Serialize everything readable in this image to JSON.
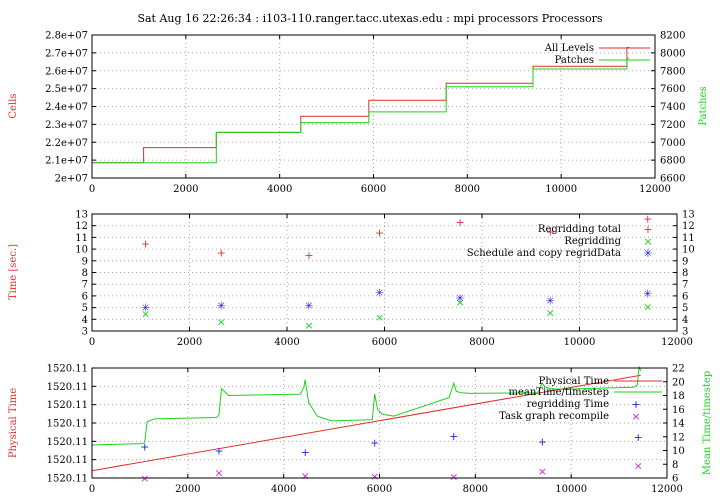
{
  "title": "Sat Aug 16 22:26:34 : i103-110.ranger.tacc.utexas.edu : mpi processors Processors",
  "colors": {
    "red": "#e0302c",
    "green": "#1ed21e",
    "blue": "#2020e0",
    "magenta": "#e020e0",
    "grid": "#aaaaaa"
  },
  "chart_data": [
    {
      "type": "line",
      "ylabel": "Cells",
      "y2label": "Patches",
      "xlim": [
        0,
        12000
      ],
      "ylim": [
        20000000,
        28000000
      ],
      "y2lim": [
        6600,
        8200
      ],
      "xticks": [
        "0",
        "2000",
        "4000",
        "6000",
        "8000",
        "10000",
        "12000"
      ],
      "yticks": [
        "2e+07",
        "2.1e+07",
        "2.2e+07",
        "2.3e+07",
        "2.4e+07",
        "2.5e+07",
        "2.6e+07",
        "2.7e+07",
        "2.8e+07"
      ],
      "y2ticks": [
        "6600",
        "6800",
        "7000",
        "7200",
        "7400",
        "7600",
        "7800",
        "8000",
        "8200"
      ],
      "legend_position": "top-right",
      "series": [
        {
          "name": "All Levels",
          "axis": "left",
          "color": "#e0302c",
          "kind": "step",
          "x": [
            0,
            1100,
            1100,
            2650,
            2650,
            4450,
            4450,
            5900,
            5900,
            7550,
            7550,
            9400,
            9400,
            11400,
            11400,
            11450
          ],
          "y": [
            20850000,
            20850000,
            21700000,
            21700000,
            22550000,
            22550000,
            23450000,
            23450000,
            24350000,
            24350000,
            25300000,
            25300000,
            26250000,
            26250000,
            27300000,
            27300000
          ]
        },
        {
          "name": "Patches",
          "axis": "right",
          "color": "#1ed21e",
          "kind": "step",
          "x": [
            0,
            1100,
            1100,
            2650,
            2650,
            4450,
            4450,
            5900,
            5900,
            7550,
            7550,
            9400,
            9400,
            11400,
            11400,
            11450
          ],
          "y": [
            6770,
            6770,
            6770,
            6770,
            7110,
            7110,
            7220,
            7220,
            7340,
            7340,
            7620,
            7620,
            7820,
            7820,
            7940,
            7940
          ]
        }
      ]
    },
    {
      "type": "scatter",
      "ylabel": "Time [sec.]",
      "xlim": [
        0,
        12000
      ],
      "ylim": [
        3,
        13
      ],
      "xticks": [
        "0",
        "2000",
        "4000",
        "6000",
        "8000",
        "10000",
        "12000"
      ],
      "yticks": [
        "3",
        "4",
        "5",
        "6",
        "7",
        "8",
        "9",
        "10",
        "11",
        "12",
        "13"
      ],
      "legend_position": "top-right",
      "series": [
        {
          "name": "Regridding total",
          "color": "#e0302c",
          "marker": "plus",
          "x": [
            1100,
            2650,
            4450,
            5900,
            7550,
            9400,
            11400
          ],
          "y": [
            10.5,
            9.7,
            9.5,
            11.4,
            12.3,
            11.5,
            12.6
          ]
        },
        {
          "name": "Regridding",
          "color": "#1ed21e",
          "marker": "cross",
          "x": [
            1100,
            2650,
            4450,
            5900,
            7550,
            9400,
            11400
          ],
          "y": [
            4.5,
            3.8,
            3.5,
            4.2,
            5.5,
            4.6,
            5.1
          ]
        },
        {
          "name": "Schedule and copy regridData",
          "color": "#2020e0",
          "marker": "star",
          "x": [
            1100,
            2650,
            4450,
            5900,
            7550,
            9400,
            11400
          ],
          "y": [
            5.0,
            5.2,
            5.2,
            6.3,
            5.8,
            5.6,
            6.2
          ]
        }
      ]
    },
    {
      "type": "line",
      "ylabel": "Physical Time",
      "y2label": "Mean Time/timestep",
      "xlim": [
        0,
        12000
      ],
      "ylim": [
        0,
        6
      ],
      "y2lim": [
        6,
        22
      ],
      "xticks": [
        "0",
        "2000",
        "4000",
        "6000",
        "8000",
        "10000",
        "12000"
      ],
      "yticks": [
        "1520.11",
        "1520.11",
        "1520.11",
        "1520.11",
        "1520.11",
        "1520.11",
        "1520.11"
      ],
      "y2ticks": [
        "6",
        "8",
        "10",
        "12",
        "14",
        "16",
        "18",
        "20",
        "22"
      ],
      "legend_position": "top-right",
      "series": [
        {
          "name": "Physical Time",
          "axis": "left",
          "color": "#e0302c",
          "kind": "line",
          "x": [
            0,
            11450
          ],
          "y": [
            0.4,
            5.6
          ]
        },
        {
          "name": "meanTime/timestep",
          "axis": "right",
          "color": "#1ed21e",
          "kind": "line",
          "x": [
            0,
            1050,
            1100,
            1150,
            1300,
            2600,
            2650,
            2700,
            2850,
            4350,
            4420,
            4450,
            4520,
            4700,
            5000,
            5850,
            5900,
            5960,
            6050,
            6300,
            7450,
            7550,
            7600,
            7700,
            7900,
            9300,
            9400,
            9450,
            9550,
            9800,
            11300,
            11380,
            11420,
            11450
          ],
          "y": [
            10.8,
            11.0,
            11.2,
            14.2,
            14.6,
            14.8,
            15.2,
            19.0,
            18.0,
            18.2,
            19.2,
            20.3,
            17.0,
            15.0,
            14.3,
            14.5,
            18.2,
            16.0,
            15.3,
            15.0,
            17.7,
            19.8,
            18.6,
            18.4,
            18.3,
            18.4,
            19.8,
            19.3,
            19.0,
            18.9,
            19.2,
            19.5,
            22.2,
            21.6
          ]
        },
        {
          "name": "regridding Time",
          "axis": "right",
          "color": "#2020e0",
          "kind": "points",
          "marker": "plus",
          "x": [
            1100,
            2650,
            4450,
            5900,
            7550,
            9400,
            11400
          ],
          "y": [
            10.6,
            10.0,
            9.8,
            11.2,
            12.1,
            11.3,
            12.0
          ]
        },
        {
          "name": "Task graph recompile",
          "axis": "right",
          "color": "#e020e0",
          "kind": "points",
          "marker": "cross",
          "x": [
            1100,
            2650,
            4450,
            5900,
            7550,
            9400,
            11400
          ],
          "y": [
            6.0,
            6.8,
            6.4,
            6.3,
            6.2,
            7.0,
            7.8
          ]
        }
      ]
    }
  ]
}
